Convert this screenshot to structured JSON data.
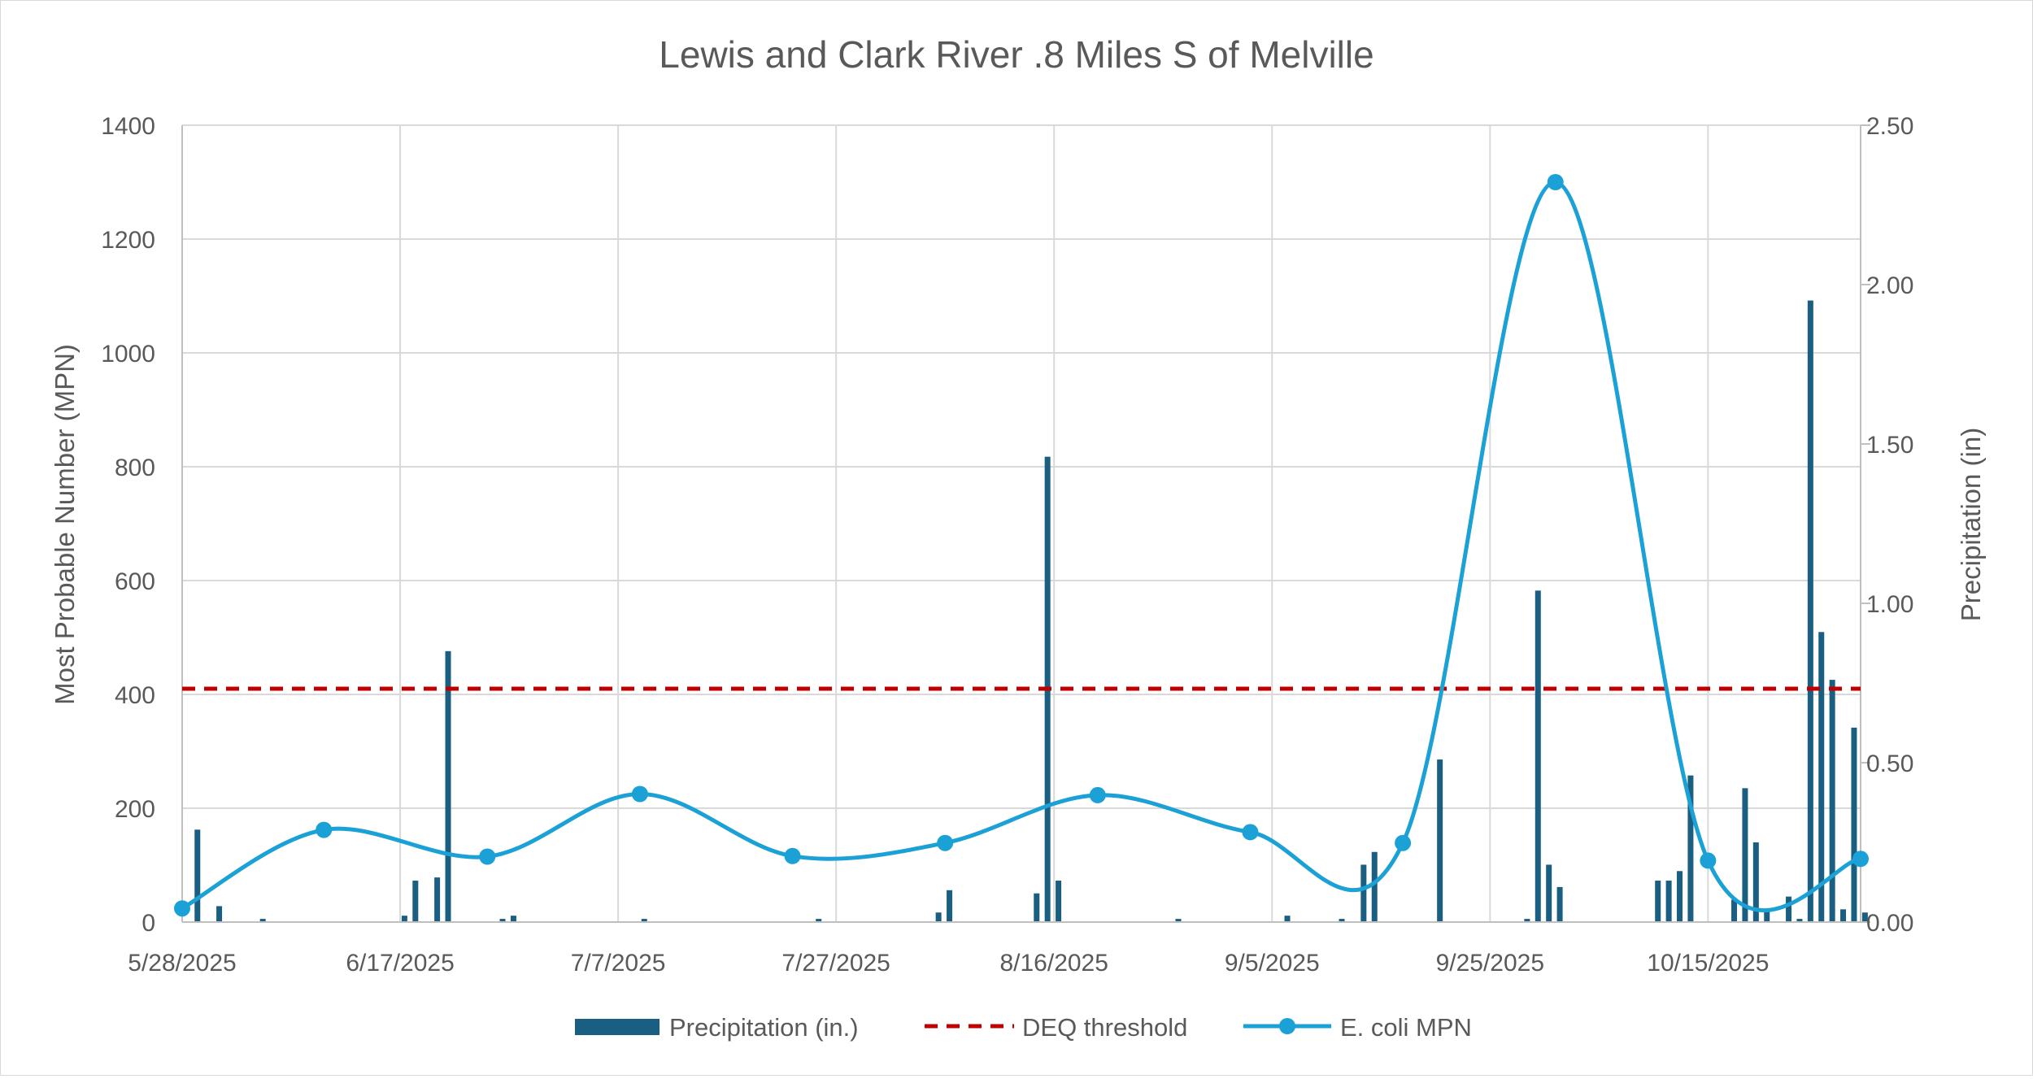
{
  "chart_data": {
    "type": "line",
    "title": "Lewis and Clark River .8 Miles S of Melville",
    "ylabel": "Most Probable Number (MPN)",
    "y2label": "Precipitation (in)",
    "ylim": [
      0,
      1400
    ],
    "y2lim": [
      0,
      2.5
    ],
    "yticks": [
      0,
      200,
      400,
      600,
      800,
      1000,
      1200,
      1400
    ],
    "y2ticks": [
      "0.00",
      "0.50",
      "1.00",
      "1.50",
      "2.00",
      "2.50"
    ],
    "xlim_days": [
      0,
      154
    ],
    "xticks": [
      {
        "day": 0,
        "label": "5/28/2025"
      },
      {
        "day": 20,
        "label": "6/17/2025"
      },
      {
        "day": 40,
        "label": "7/7/2025"
      },
      {
        "day": 60,
        "label": "7/27/2025"
      },
      {
        "day": 80,
        "label": "8/16/2025"
      },
      {
        "day": 100,
        "label": "9/5/2025"
      },
      {
        "day": 120,
        "label": "9/25/2025"
      },
      {
        "day": 140,
        "label": "10/15/2025"
      }
    ],
    "grid": true,
    "legend_position": "bottom",
    "series": [
      {
        "name": "Precipitation (in.)",
        "type": "bar",
        "axis": "right",
        "color": "#1a5f82",
        "points": [
          {
            "day": 1.4,
            "value": 0.29
          },
          {
            "day": 3.4,
            "value": 0.05
          },
          {
            "day": 7.4,
            "value": 0.01
          },
          {
            "day": 20.4,
            "value": 0.02
          },
          {
            "day": 21.4,
            "value": 0.13
          },
          {
            "day": 23.4,
            "value": 0.14
          },
          {
            "day": 24.4,
            "value": 0.85
          },
          {
            "day": 29.4,
            "value": 0.01
          },
          {
            "day": 30.4,
            "value": 0.02
          },
          {
            "day": 42.4,
            "value": 0.01
          },
          {
            "day": 58.4,
            "value": 0.01
          },
          {
            "day": 69.4,
            "value": 0.03
          },
          {
            "day": 70.4,
            "value": 0.1
          },
          {
            "day": 78.4,
            "value": 0.09
          },
          {
            "day": 79.4,
            "value": 1.46
          },
          {
            "day": 80.4,
            "value": 0.13
          },
          {
            "day": 91.4,
            "value": 0.01
          },
          {
            "day": 101.4,
            "value": 0.02
          },
          {
            "day": 106.4,
            "value": 0.01
          },
          {
            "day": 108.4,
            "value": 0.18
          },
          {
            "day": 109.4,
            "value": 0.22
          },
          {
            "day": 115.4,
            "value": 0.51
          },
          {
            "day": 123.4,
            "value": 0.01
          },
          {
            "day": 124.4,
            "value": 1.04
          },
          {
            "day": 125.4,
            "value": 0.18
          },
          {
            "day": 126.4,
            "value": 0.11
          },
          {
            "day": 135.4,
            "value": 0.13
          },
          {
            "day": 136.4,
            "value": 0.13
          },
          {
            "day": 137.4,
            "value": 0.16
          },
          {
            "day": 138.4,
            "value": 0.46
          },
          {
            "day": 142.4,
            "value": 0.07
          },
          {
            "day": 143.4,
            "value": 0.42
          },
          {
            "day": 144.4,
            "value": 0.25
          },
          {
            "day": 145.4,
            "value": 0.04
          },
          {
            "day": 147.4,
            "value": 0.08
          },
          {
            "day": 148.4,
            "value": 0.01
          },
          {
            "day": 149.4,
            "value": 1.95
          },
          {
            "day": 150.4,
            "value": 0.91
          },
          {
            "day": 151.4,
            "value": 0.76
          },
          {
            "day": 152.4,
            "value": 0.04
          },
          {
            "day": 153.4,
            "value": 0.61
          },
          {
            "day": 154.4,
            "value": 0.03
          }
        ]
      },
      {
        "name": "DEQ threshold",
        "type": "line",
        "axis": "left",
        "color": "#c00000",
        "dashed": true,
        "value": 410
      },
      {
        "name": "E. coli MPN",
        "type": "line",
        "axis": "left",
        "color": "#1ba1d6",
        "smooth": true,
        "markers": true,
        "points": [
          {
            "day": 0,
            "value": 24
          },
          {
            "day": 13,
            "value": 162
          },
          {
            "day": 28,
            "value": 115
          },
          {
            "day": 42,
            "value": 225
          },
          {
            "day": 56,
            "value": 116
          },
          {
            "day": 70,
            "value": 139
          },
          {
            "day": 84,
            "value": 223
          },
          {
            "day": 98,
            "value": 158
          },
          {
            "day": 112,
            "value": 139
          },
          {
            "day": 126,
            "value": 1300
          },
          {
            "day": 140,
            "value": 108
          },
          {
            "day": 154,
            "value": 111
          }
        ]
      }
    ]
  }
}
